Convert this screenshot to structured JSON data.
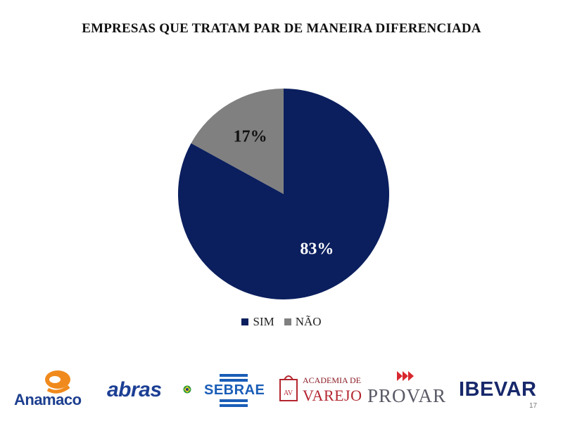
{
  "chart_data": {
    "type": "pie",
    "title": "EMPRESAS QUE TRATAM PAR DE MANEIRA DIFERENCIADA",
    "categories": [
      "SIM",
      "NÃO"
    ],
    "values": [
      83,
      17
    ],
    "data_labels": [
      "83%",
      "17%"
    ],
    "colors": [
      "#0b1f5e",
      "#808080"
    ],
    "legend": "bottom"
  },
  "logos": {
    "anamaco": "Anamaco",
    "abras": "abras",
    "sebrae": "SEBRAE",
    "academia_top": "ACADEMIA DE",
    "academia_bottom": "VAREJO",
    "academia_badge": "AV",
    "provar": "PROVAR",
    "ibevar": "IBEVAR"
  },
  "page_number": "17"
}
